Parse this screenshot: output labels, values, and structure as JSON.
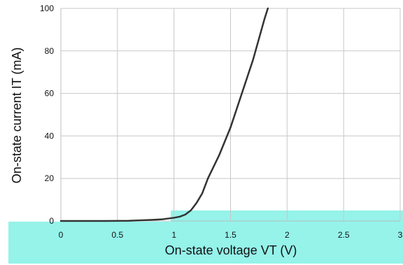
{
  "chart_data": {
    "type": "line",
    "title": "",
    "xlabel": "On-state voltage VT (V)",
    "ylabel": "On-state current IT (mA)",
    "xlim": [
      0,
      3
    ],
    "ylim": [
      0,
      100
    ],
    "grid": true,
    "x_ticks": [
      0,
      0.5,
      1,
      1.5,
      2,
      2.5,
      3
    ],
    "x_tick_labels": [
      "0",
      "0.5",
      "1",
      "1.5",
      "2",
      "2.5",
      "3"
    ],
    "y_ticks": [
      0,
      20,
      40,
      60,
      80,
      100
    ],
    "y_tick_labels": [
      "0",
      "20",
      "40",
      "60",
      "80",
      "100"
    ],
    "series": [
      {
        "x": [
          0,
          0.2,
          0.4,
          0.6,
          0.8,
          0.9,
          1.0,
          1.05,
          1.1,
          1.15,
          1.2,
          1.25,
          1.3,
          1.4,
          1.5,
          1.6,
          1.7,
          1.8,
          1.83
        ],
        "y": [
          0,
          0,
          0,
          0.1,
          0.5,
          0.8,
          1.5,
          2,
          3,
          5,
          8.5,
          13,
          20,
          31,
          44,
          60,
          76,
          95,
          100
        ],
        "color": "#333333"
      }
    ],
    "colors": {
      "line": "#333333",
      "grid": "#c8c8c8",
      "axis": "#bdbdbd",
      "highlight": "#8ff2e9"
    }
  }
}
